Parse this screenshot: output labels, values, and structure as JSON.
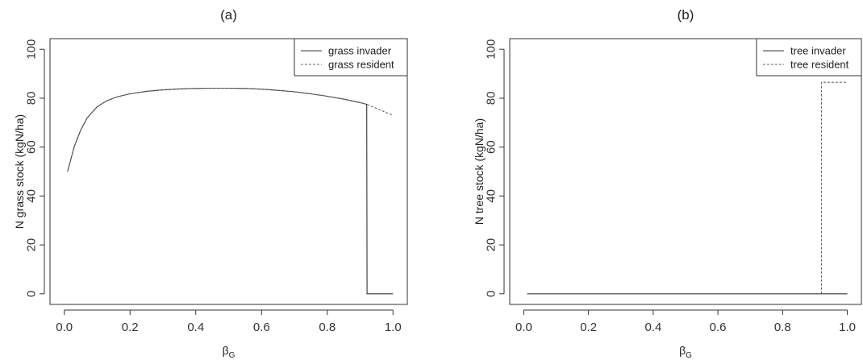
{
  "chart_data": [
    {
      "type": "line",
      "panel_label": "(a)",
      "xlabel_main": "β",
      "xlabel_sub": "G",
      "ylabel": "N grass stock (kgN/ha)",
      "xlim": [
        0,
        1
      ],
      "ylim": [
        0,
        100
      ],
      "xticks": [
        "0.0",
        "0.2",
        "0.4",
        "0.6",
        "0.8",
        "1.0"
      ],
      "yticks": [
        "0",
        "20",
        "40",
        "60",
        "80",
        "100"
      ],
      "legend": "top-right",
      "series": [
        {
          "name": "grass invader",
          "style": "solid",
          "x": [
            0.01,
            0.03,
            0.05,
            0.07,
            0.1,
            0.13,
            0.16,
            0.2,
            0.25,
            0.3,
            0.35,
            0.4,
            0.45,
            0.5,
            0.55,
            0.6,
            0.65,
            0.7,
            0.75,
            0.8,
            0.85,
            0.9,
            0.92,
            0.921,
            0.93,
            1.0
          ],
          "y": [
            50,
            60,
            67,
            72,
            76.5,
            79,
            80.5,
            81.8,
            82.8,
            83.4,
            83.8,
            84.0,
            84.1,
            84.1,
            84.0,
            83.7,
            83.2,
            82.6,
            81.8,
            80.8,
            79.6,
            78.2,
            77.5,
            0,
            0,
            0
          ]
        },
        {
          "name": "grass resident",
          "style": "dashed",
          "x": [
            0.01,
            0.03,
            0.05,
            0.07,
            0.1,
            0.13,
            0.16,
            0.2,
            0.25,
            0.3,
            0.35,
            0.4,
            0.45,
            0.5,
            0.55,
            0.6,
            0.65,
            0.7,
            0.75,
            0.8,
            0.85,
            0.9,
            0.92,
            0.95,
            1.0
          ],
          "y": [
            50,
            60,
            67,
            72,
            76.5,
            79,
            80.5,
            81.8,
            82.8,
            83.4,
            83.8,
            84.0,
            84.1,
            84.1,
            84.0,
            83.7,
            83.2,
            82.6,
            81.8,
            80.8,
            79.6,
            78.2,
            77.5,
            75.8,
            73
          ]
        }
      ]
    },
    {
      "type": "line",
      "panel_label": "(b)",
      "xlabel_main": "β",
      "xlabel_sub": "G",
      "ylabel": "N tree stock (kgN/ha)",
      "xlim": [
        0,
        1
      ],
      "ylim": [
        0,
        100
      ],
      "xticks": [
        "0.0",
        "0.2",
        "0.4",
        "0.6",
        "0.8",
        "1.0"
      ],
      "yticks": [
        "0",
        "20",
        "40",
        "60",
        "80",
        "100"
      ],
      "legend": "top-right",
      "series": [
        {
          "name": "tree invader",
          "style": "solid",
          "x": [
            0.01,
            1.0
          ],
          "y": [
            0,
            0
          ]
        },
        {
          "name": "tree resident",
          "style": "dashed",
          "x": [
            0.01,
            0.92,
            0.92,
            1.0
          ],
          "y": [
            0,
            0,
            86.5,
            86.5
          ]
        }
      ]
    }
  ]
}
